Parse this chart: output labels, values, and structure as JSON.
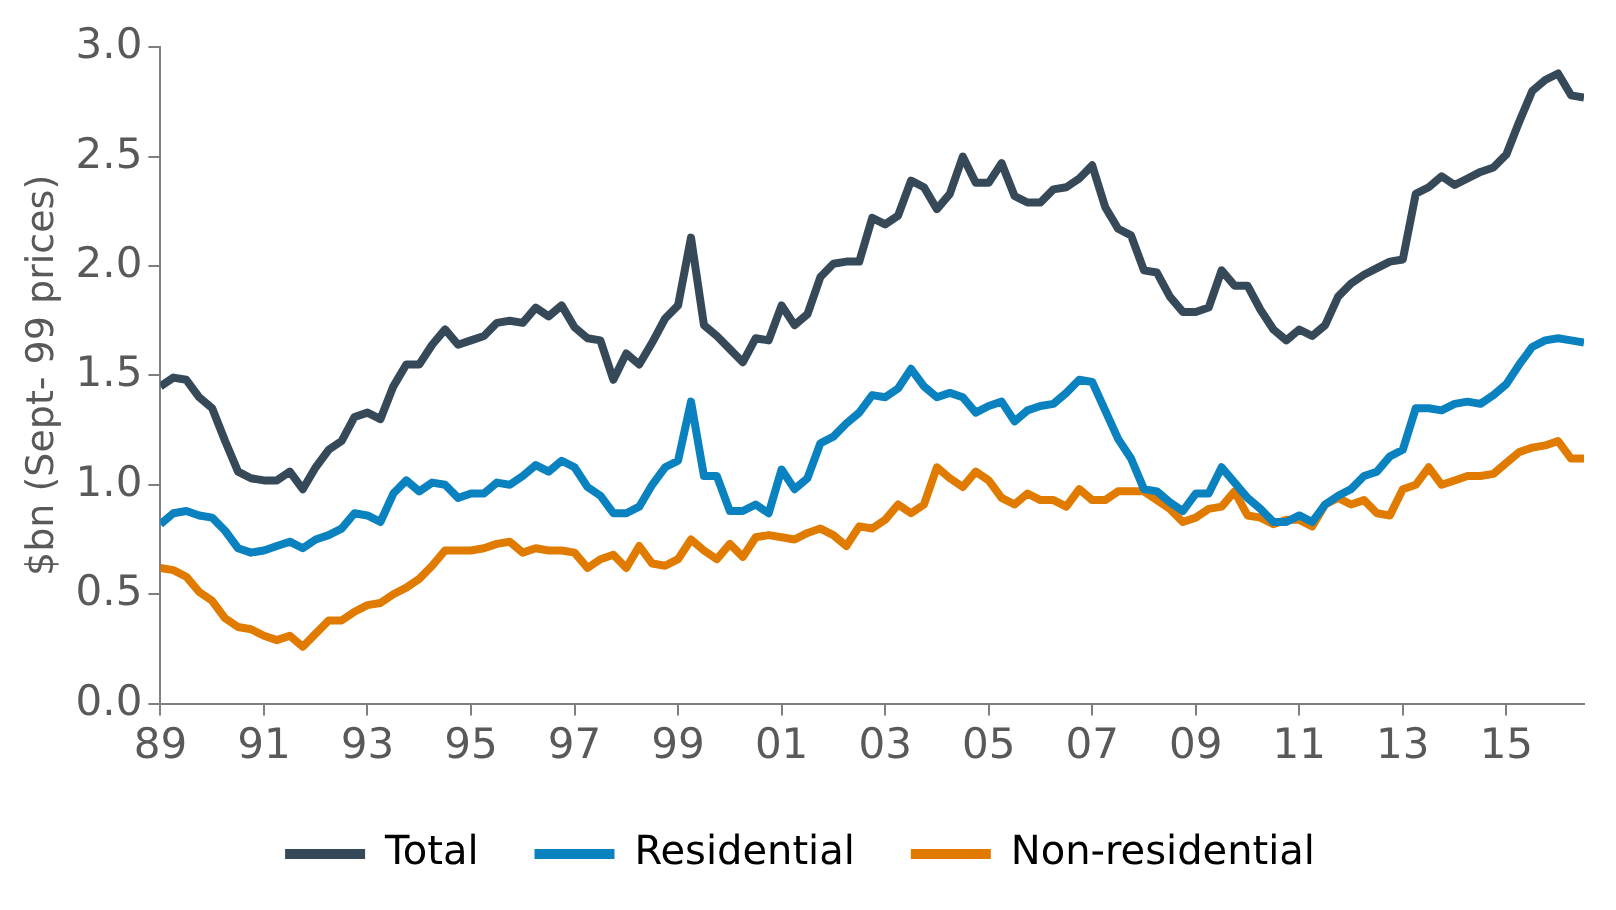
{
  "chart_data": {
    "type": "line",
    "ylabel": "$bn (Sept- 99 prices)",
    "legend": "bottom",
    "marker": "none",
    "line_style": "solid",
    "grid": false,
    "xlim": [
      1989,
      2016.5
    ],
    "xticks": [
      {
        "value": 1989,
        "label": "89"
      },
      {
        "value": 1991,
        "label": "91"
      },
      {
        "value": 1993,
        "label": "93"
      },
      {
        "value": 1995,
        "label": "95"
      },
      {
        "value": 1997,
        "label": "97"
      },
      {
        "value": 1999,
        "label": "99"
      },
      {
        "value": 2001,
        "label": "01"
      },
      {
        "value": 2003,
        "label": "03"
      },
      {
        "value": 2005,
        "label": "05"
      },
      {
        "value": 2007,
        "label": "07"
      },
      {
        "value": 2009,
        "label": "09"
      },
      {
        "value": 2011,
        "label": "11"
      },
      {
        "value": 2013,
        "label": "13"
      },
      {
        "value": 2015,
        "label": "15"
      }
    ],
    "ylim": [
      0,
      3
    ],
    "yticks": [
      {
        "value": 0,
        "label": "0.0"
      },
      0.5,
      {
        "value": 1,
        "label": "1.0"
      },
      1.5,
      {
        "value": 2,
        "label": "2.0"
      },
      2.5,
      {
        "value": 3,
        "label": "3.0"
      }
    ],
    "x": [
      1989,
      1989.25,
      1989.5,
      1989.75,
      1990,
      1990.25,
      1990.5,
      1990.75,
      1991,
      1991.25,
      1991.5,
      1991.75,
      1992,
      1992.25,
      1992.5,
      1992.75,
      1993,
      1993.25,
      1993.5,
      1993.75,
      1994,
      1994.25,
      1994.5,
      1994.75,
      1995,
      1995.25,
      1995.5,
      1995.75,
      1996,
      1996.25,
      1996.5,
      1996.75,
      1997,
      1997.25,
      1997.5,
      1997.75,
      1998,
      1998.25,
      1998.5,
      1998.75,
      1999,
      1999.25,
      1999.5,
      1999.75,
      2000,
      2000.25,
      2000.5,
      2000.75,
      2001,
      2001.25,
      2001.5,
      2001.75,
      2002,
      2002.25,
      2002.5,
      2002.75,
      2003,
      2003.25,
      2003.5,
      2003.75,
      2004,
      2004.25,
      2004.5,
      2004.75,
      2005,
      2005.25,
      2005.5,
      2005.75,
      2006,
      2006.25,
      2006.5,
      2006.75,
      2007,
      2007.25,
      2007.5,
      2007.75,
      2008,
      2008.25,
      2008.5,
      2008.75,
      2009,
      2009.25,
      2009.5,
      2009.75,
      2010,
      2010.25,
      2010.5,
      2010.75,
      2011,
      2011.25,
      2011.5,
      2011.75,
      2012,
      2012.25,
      2012.5,
      2012.75,
      2013,
      2013.25,
      2013.5,
      2013.75,
      2014,
      2014.25,
      2014.5,
      2014.75,
      2015,
      2015.25,
      2015.5,
      2015.75,
      2016,
      2016.25,
      2016.5
    ],
    "series": [
      {
        "name": "Total",
        "color": "#364958",
        "values": [
          1.45,
          1.49,
          1.48,
          1.4,
          1.35,
          1.2,
          1.06,
          1.03,
          1.02,
          1.02,
          1.06,
          0.98,
          1.08,
          1.16,
          1.2,
          1.31,
          1.33,
          1.3,
          1.45,
          1.55,
          1.55,
          1.64,
          1.71,
          1.64,
          1.66,
          1.68,
          1.74,
          1.75,
          1.74,
          1.81,
          1.77,
          1.82,
          1.72,
          1.67,
          1.66,
          1.48,
          1.6,
          1.55,
          1.65,
          1.76,
          1.82,
          2.13,
          1.73,
          1.68,
          1.62,
          1.56,
          1.67,
          1.66,
          1.82,
          1.73,
          1.78,
          1.95,
          2.01,
          2.02,
          2.02,
          2.22,
          2.19,
          2.23,
          2.39,
          2.36,
          2.26,
          2.33,
          2.5,
          2.38,
          2.38,
          2.47,
          2.32,
          2.29,
          2.29,
          2.35,
          2.36,
          2.4,
          2.46,
          2.27,
          2.17,
          2.14,
          1.98,
          1.97,
          1.86,
          1.79,
          1.79,
          1.81,
          1.98,
          1.91,
          1.91,
          1.8,
          1.71,
          1.66,
          1.71,
          1.68,
          1.73,
          1.86,
          1.92,
          1.96,
          1.99,
          2.02,
          2.03,
          2.33,
          2.36,
          2.41,
          2.37,
          2.4,
          2.43,
          2.45,
          2.51,
          2.66,
          2.8,
          2.85,
          2.88,
          2.78,
          2.77
        ]
      },
      {
        "name": "Residential",
        "color": "#0a82c0",
        "values": [
          0.82,
          0.87,
          0.88,
          0.86,
          0.85,
          0.79,
          0.71,
          0.69,
          0.7,
          0.72,
          0.74,
          0.71,
          0.75,
          0.77,
          0.8,
          0.87,
          0.86,
          0.83,
          0.96,
          1.02,
          0.97,
          1.01,
          1.0,
          0.94,
          0.96,
          0.96,
          1.01,
          1.0,
          1.04,
          1.09,
          1.06,
          1.11,
          1.08,
          0.99,
          0.95,
          0.87,
          0.87,
          0.9,
          1.0,
          1.08,
          1.11,
          1.38,
          1.04,
          1.04,
          0.88,
          0.88,
          0.91,
          0.87,
          1.07,
          0.98,
          1.03,
          1.19,
          1.22,
          1.28,
          1.33,
          1.41,
          1.4,
          1.44,
          1.53,
          1.45,
          1.4,
          1.42,
          1.4,
          1.33,
          1.36,
          1.38,
          1.29,
          1.34,
          1.36,
          1.37,
          1.42,
          1.48,
          1.47,
          1.34,
          1.21,
          1.12,
          0.98,
          0.97,
          0.92,
          0.88,
          0.96,
          0.96,
          1.08,
          1.01,
          0.94,
          0.89,
          0.83,
          0.83,
          0.86,
          0.83,
          0.91,
          0.95,
          0.98,
          1.04,
          1.06,
          1.13,
          1.16,
          1.35,
          1.35,
          1.34,
          1.37,
          1.38,
          1.37,
          1.41,
          1.46,
          1.55,
          1.63,
          1.66,
          1.67,
          1.66,
          1.65
        ]
      },
      {
        "name": "Non-residential",
        "color": "#e07b00",
        "values": [
          0.62,
          0.61,
          0.58,
          0.51,
          0.47,
          0.39,
          0.35,
          0.34,
          0.31,
          0.29,
          0.31,
          0.26,
          0.32,
          0.38,
          0.38,
          0.42,
          0.45,
          0.46,
          0.5,
          0.53,
          0.57,
          0.63,
          0.7,
          0.7,
          0.7,
          0.71,
          0.73,
          0.74,
          0.69,
          0.71,
          0.7,
          0.7,
          0.69,
          0.62,
          0.66,
          0.68,
          0.62,
          0.72,
          0.64,
          0.63,
          0.66,
          0.75,
          0.7,
          0.66,
          0.73,
          0.67,
          0.76,
          0.77,
          0.76,
          0.75,
          0.78,
          0.8,
          0.77,
          0.72,
          0.81,
          0.8,
          0.84,
          0.91,
          0.87,
          0.91,
          1.08,
          1.03,
          0.99,
          1.06,
          1.02,
          0.94,
          0.91,
          0.96,
          0.93,
          0.93,
          0.9,
          0.98,
          0.93,
          0.93,
          0.97,
          0.97,
          0.97,
          0.93,
          0.89,
          0.83,
          0.85,
          0.89,
          0.9,
          0.97,
          0.86,
          0.85,
          0.82,
          0.84,
          0.84,
          0.81,
          0.91,
          0.94,
          0.91,
          0.93,
          0.87,
          0.86,
          0.98,
          1.0,
          1.08,
          1.0,
          1.02,
          1.04,
          1.04,
          1.05,
          1.1,
          1.15,
          1.17,
          1.18,
          1.2,
          1.12,
          1.12
        ]
      }
    ]
  }
}
